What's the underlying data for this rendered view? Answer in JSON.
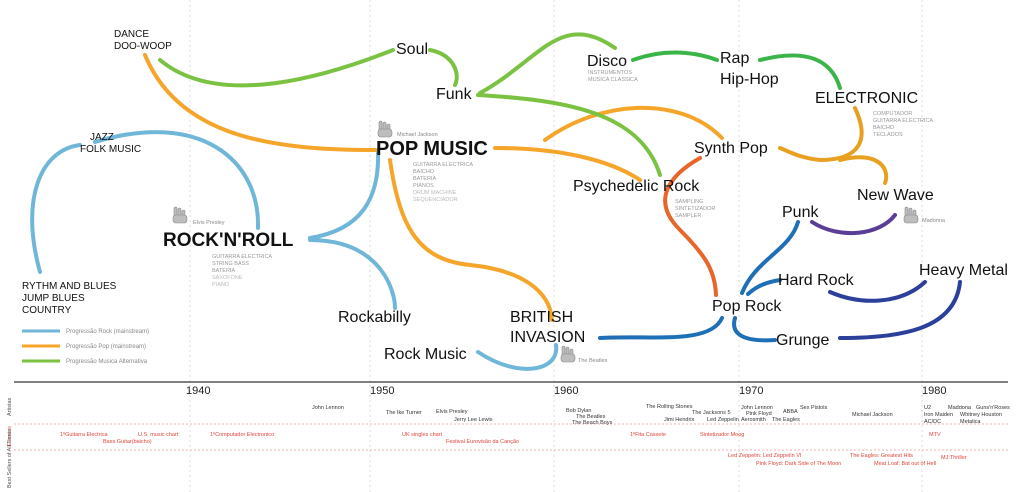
{
  "colors": {
    "rock": "#6fb6d8",
    "pop": "#f5a52a",
    "alt": "#7bc242",
    "green": "#3bb54a",
    "blue": "#1f6fb6",
    "navy": "#2b3f9b",
    "orange_red": "#e8662a",
    "purple": "#5a3d96",
    "grid": "#dddddd",
    "event_red": "#e0453a",
    "gray_text": "#999999"
  },
  "genres": {
    "dance": "DANCE",
    "doowoop": "DOO-WOOP",
    "jazz": "JAZZ",
    "folk": "FOLK MUSIC",
    "rnb": "RYTHM AND BLUES",
    "jumpblues": "JUMP BLUES",
    "country": "COUNTRY",
    "rocknroll": "ROCK'N'ROLL",
    "soul": "Soul",
    "funk": "Funk",
    "popmusic": "POP MUSIC",
    "rockabilly": "Rockabilly",
    "rockmusic": "Rock Music",
    "british1": "BRITISH",
    "british2": "INVASION",
    "disco": "Disco",
    "psychedelic": "Psychedelic Rock",
    "synthpop": "Synth Pop",
    "rap": "Rap",
    "hiphop": "Hip-Hop",
    "electronic": "ELECTRONIC",
    "newwave": "New Wave",
    "punk": "Punk",
    "hardrock": "Hard Rock",
    "poprock": "Pop Rock",
    "grunge": "Grunge",
    "heavymetal": "Heavy Metal"
  },
  "instruments": {
    "rocknroll": [
      "GUITARRA ELECTRICA",
      "STRING BASS",
      "BATERIA",
      "SAXOFONE",
      "PIANO"
    ],
    "popmusic": [
      "GUITARRA ELECTRICA",
      "BAICHO",
      "BATERIA",
      "PIANOS",
      "DRUM MACHINE",
      "SEQUENCIADOR"
    ],
    "disco": [
      "INSTRUMENTOS",
      "MUSICA CLASSICA"
    ],
    "psychedelic": [
      "SAMPLING",
      "SINTETIZADOR",
      "SAMPLER"
    ],
    "electronic": [
      "COMPUTADOR",
      "GUITARRA ELECTRICA",
      "BAICHO",
      "TECLADOS"
    ]
  },
  "artists_tags": {
    "elvis": "Elvis Presley",
    "michael": "Michael Jackson",
    "beatles": "The Beatles",
    "madonna": "Madonna"
  },
  "legend": {
    "rock": "Progressão Rock (mainstream)",
    "pop": "Progressão Pop (mainstream)",
    "alt": "Progressão Musica Alternativa"
  },
  "timeline": {
    "years": [
      "1940",
      "1950",
      "1960",
      "1970",
      "1980"
    ],
    "rows": [
      "Artistas",
      "Eventos",
      "Best Sellers of All Times"
    ]
  },
  "artists": [
    "John Lennon",
    "The Ike Turner",
    "Elvis Presley",
    "Jerry Lee Lewis",
    "Bob Dylan",
    "The Beatles",
    "The Beach Boys",
    "The Rolling Stones",
    "The Jacksons 5",
    "Jimi Hendrix",
    "Led Zeppelin",
    "John Lennon",
    "Pink Floyd",
    "Aerosmith",
    "ABBA",
    "The Eagles",
    "Sex Pistols",
    "Michael Jackson",
    "U2",
    "Iron Maiden",
    "AC/DC",
    "Maddona",
    "Whitney Houston",
    "Metalica",
    "Guns'n'Roses"
  ],
  "events": [
    "1ºGuitarra Electrica",
    "Bass Guitar(baicho)",
    "U.S. music chart",
    "1ºComputador Electronico",
    "UK singles chart",
    "Festival Eurovisão da Canção",
    "1ºFita Cassete",
    "Sintetizador Moog",
    "MTV"
  ],
  "bestsellers": [
    "Led Zeppelin: Led Zeppelin VI",
    "Pink Floyd: Dark Side of The Moon",
    "The Eagles: Greatest Hits",
    "Meat Loaf: Bat out of Hell",
    "MJ:Thriller"
  ]
}
